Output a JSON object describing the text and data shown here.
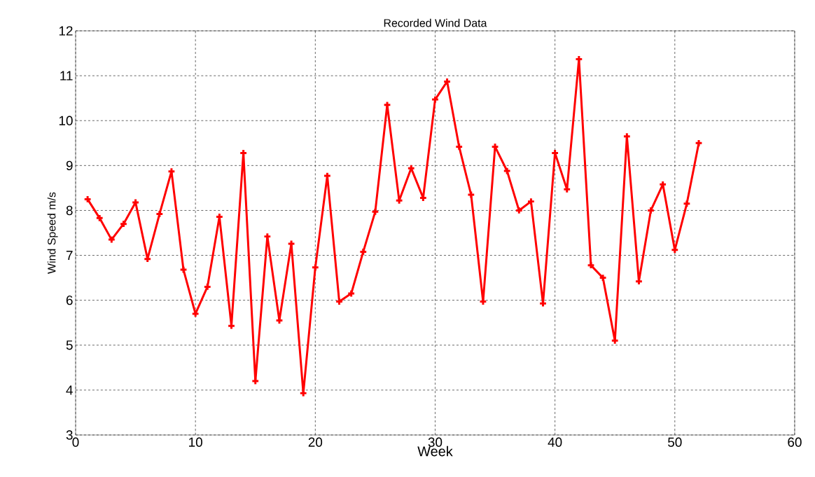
{
  "chart_data": {
    "type": "line",
    "title": "Recorded Wind Data",
    "xlabel": "Week",
    "ylabel": "Wind Speed m/s",
    "x": [
      1,
      2,
      3,
      4,
      5,
      6,
      7,
      8,
      9,
      10,
      11,
      12,
      13,
      14,
      15,
      16,
      17,
      18,
      19,
      20,
      21,
      22,
      23,
      24,
      25,
      26,
      27,
      28,
      29,
      30,
      31,
      32,
      33,
      34,
      35,
      36,
      37,
      38,
      39,
      40,
      41,
      42,
      43,
      44,
      45,
      46,
      47,
      48,
      49,
      50,
      51,
      52
    ],
    "series": [
      {
        "color": "#ff0000",
        "values": [
          8.25,
          7.83,
          7.35,
          7.7,
          8.18,
          6.92,
          7.92,
          8.87,
          6.68,
          5.7,
          6.3,
          7.86,
          5.43,
          9.28,
          4.2,
          7.42,
          5.55,
          7.26,
          3.93,
          6.73,
          8.77,
          5.97,
          6.15,
          7.08,
          7.97,
          10.35,
          8.22,
          8.94,
          8.28,
          10.47,
          10.87,
          9.42,
          8.35,
          5.97,
          9.42,
          8.88,
          8.0,
          8.2,
          5.93,
          9.28,
          8.47,
          11.37,
          6.78,
          6.5,
          5.1,
          9.65,
          6.42,
          8.0,
          8.58,
          7.12,
          8.15,
          9.5
        ]
      }
    ],
    "xlim": [
      0,
      60
    ],
    "ylim": [
      3,
      12
    ],
    "xticks": [
      0,
      10,
      20,
      30,
      40,
      50,
      60
    ],
    "yticks": [
      3,
      4,
      5,
      6,
      7,
      8,
      9,
      10,
      11,
      12
    ],
    "grid": true,
    "marker": "cross",
    "line_style": "solid"
  }
}
